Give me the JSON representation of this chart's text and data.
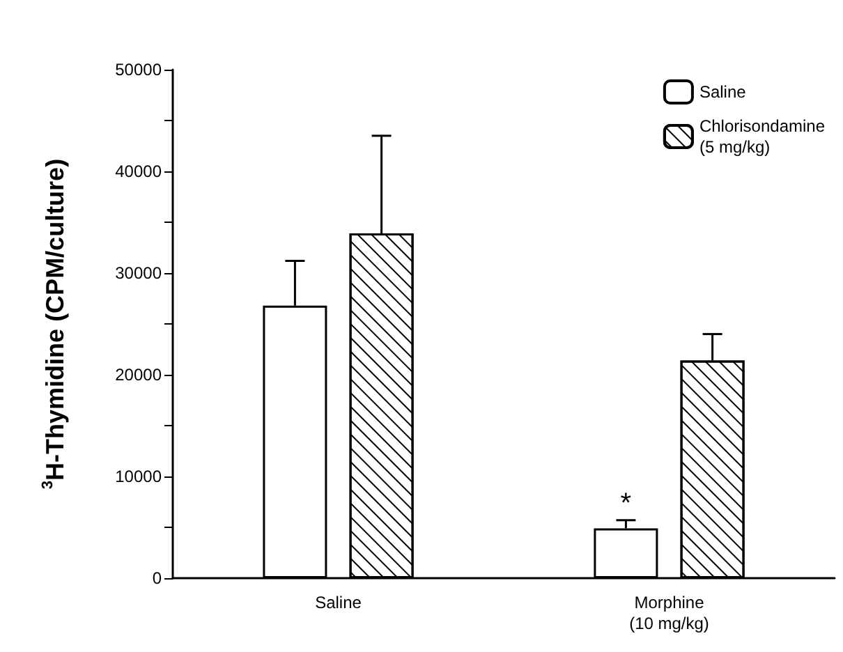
{
  "chart_data": {
    "type": "bar",
    "ylabel": "$^{3}$H-Thymidine (CPM/culture)",
    "categories": [
      "Saline",
      "Morphine\n(10 mg/kg)"
    ],
    "series": [
      {
        "name": "Saline",
        "color": "#ffffff",
        "values": [
          26800,
          4900
        ],
        "errors": [
          4400,
          800
        ]
      },
      {
        "name": "Chlorisondamine\n(5 mg/kg)",
        "color": "#000000",
        "values": [
          33900,
          21400
        ],
        "errors": [
          9600,
          2600
        ]
      }
    ],
    "ylim": [
      0,
      50000
    ],
    "yticks": [
      0,
      {
        "value": 5000,
        "label": null
      },
      10000,
      {
        "value": 15000,
        "label": null
      },
      20000,
      {
        "value": 25000,
        "label": null
      },
      30000,
      {
        "value": 35000,
        "label": null
      },
      40000,
      {
        "value": 45000,
        "label": null
      },
      50000
    ],
    "annotations": [
      "*"
    ],
    "legend": "top right",
    "grid": false
  }
}
